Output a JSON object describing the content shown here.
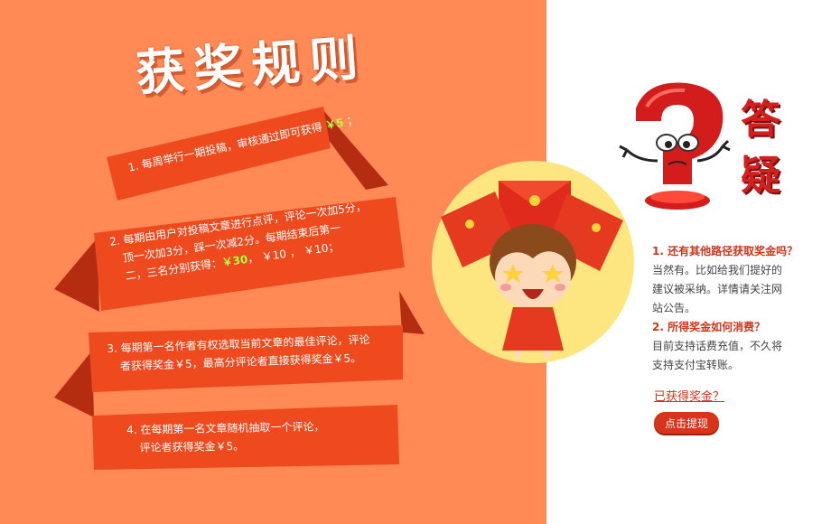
{
  "title": "获奖规则",
  "rules": [
    {
      "lines": [
        "1. 每周举行一期投稿，审核通过即可获得"
      ],
      "highlight": "￥5",
      "tail": "；"
    },
    {
      "line1": "2. 每期由用户对投稿文章进行点评，评论一次加5分，",
      "line2": "顶一次加3分，踩一次减2分。每期结束后第一",
      "line3_pre": "二，三名分别获得：",
      "line3_hl": "￥30",
      "line3_post": "，  ￥10 ，  ￥10；"
    },
    {
      "line1": "3. 每期第一名作者有权选取当前文章的最佳评论，评论",
      "line2": "者获得奖金￥5，最高分评论者直接获得奖金￥5。"
    },
    {
      "line1": "4. 在每期第一名文章随机抽取一个评论，",
      "line2": "评论者获得奖金￥5。"
    }
  ],
  "faq": {
    "badge": [
      "答",
      "疑"
    ],
    "q1": "1. 还有其他路径获取奖金吗？",
    "a1_line1": "当然有。比如给我们提好的",
    "a1_line2": "建议被采纳。详情请关注网",
    "a1_line3": "站公告。",
    "q2": "2. 所得奖金如何消费？",
    "a2_line1": "目前支持话费充值，不久将",
    "a2_line2": "支持支付宝转账。"
  },
  "earned_link": "已获得奖金？",
  "withdraw_button": "点击提现",
  "icons": {
    "question_mascot": "question-mark-mascot-icon",
    "girl_mascot": "girl-with-red-envelopes-icon"
  },
  "colors": {
    "panel_orange": "#ff8a55",
    "ribbon_red": "#e8431c",
    "highlight_green": "#a8ff3e",
    "accent_red": "#d0341a"
  }
}
